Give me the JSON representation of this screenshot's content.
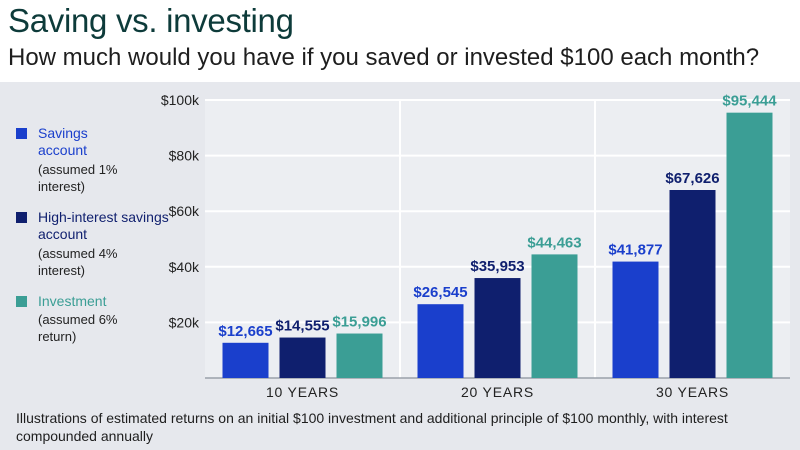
{
  "title": "Saving vs. investing",
  "subtitle": "How much would you have if you saved or invested $100 each month?",
  "footnote": "Illustrations of estimated returns on an initial $100 investment and additional principle of $100 monthly, with interest compounded annually",
  "legend": [
    {
      "label": "Savings account",
      "note": "(assumed 1% interest)",
      "color": "#1a3fcc"
    },
    {
      "label": "High-interest savings account",
      "note": "(assumed 4% interest)",
      "color": "#0f1f6e"
    },
    {
      "label": "Investment",
      "note": "(assumed 6% return)",
      "color": "#3b9e95"
    }
  ],
  "chart_data": {
    "type": "bar",
    "title": "Saving vs. investing",
    "categories": [
      "10 YEARS",
      "20 YEARS",
      "30 YEARS"
    ],
    "series": [
      {
        "name": "Savings account",
        "values": [
          12665,
          26545,
          41877
        ],
        "labels": [
          "$12,665",
          "$26,545",
          "$41,877"
        ],
        "color": "#1a3fcc"
      },
      {
        "name": "High-interest savings account",
        "values": [
          14555,
          35953,
          67626
        ],
        "labels": [
          "$14,555",
          "$35,953",
          "$67,626"
        ],
        "color": "#0f1f6e"
      },
      {
        "name": "Investment",
        "values": [
          15996,
          44463,
          95444
        ],
        "labels": [
          "$15,996",
          "$44,463",
          "$95,444"
        ],
        "color": "#3b9e95"
      }
    ],
    "ylim": [
      0,
      100000
    ],
    "yticks": [
      20000,
      40000,
      60000,
      80000,
      100000
    ],
    "ytick_labels": [
      "$20k",
      "$40k",
      "$60k",
      "$80k",
      "$100k"
    ],
    "grid": true,
    "legend_position": "left"
  }
}
